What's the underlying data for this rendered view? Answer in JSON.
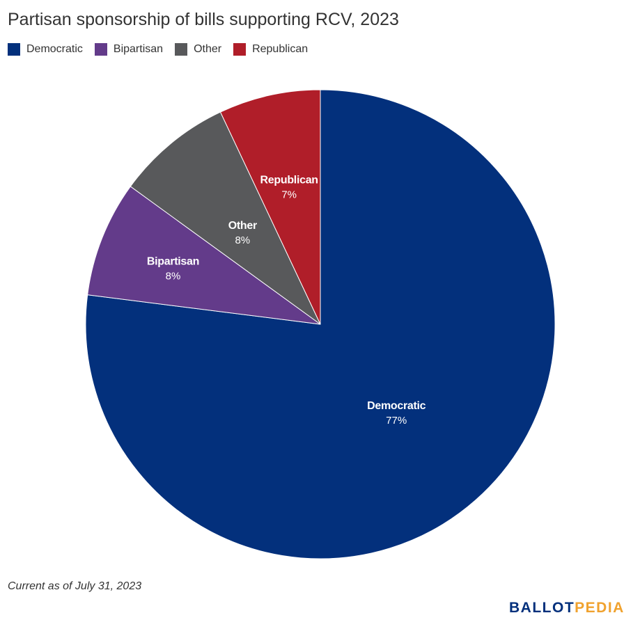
{
  "chart_data": {
    "type": "pie",
    "title": "Partisan sponsorship of bills supporting RCV, 2023",
    "slices": [
      {
        "name": "Democratic",
        "value": 77,
        "label": "77%",
        "color": "#03307c"
      },
      {
        "name": "Bipartisan",
        "value": 8,
        "label": "8%",
        "color": "#633b8a"
      },
      {
        "name": "Other",
        "value": 8,
        "label": "8%",
        "color": "#58595b"
      },
      {
        "name": "Republican",
        "value": 7,
        "label": "7%",
        "color": "#b01e29"
      }
    ],
    "legend": [
      "Democratic",
      "Bipartisan",
      "Other",
      "Republican"
    ],
    "legend_position": "top-left",
    "start": "12 o'clock, clockwise"
  },
  "note": "Current as of July 31, 2023",
  "logo": {
    "part1": "BALLOT",
    "part2": "PEDIA",
    "color1": "#03307c",
    "color2": "#f0a22e"
  }
}
